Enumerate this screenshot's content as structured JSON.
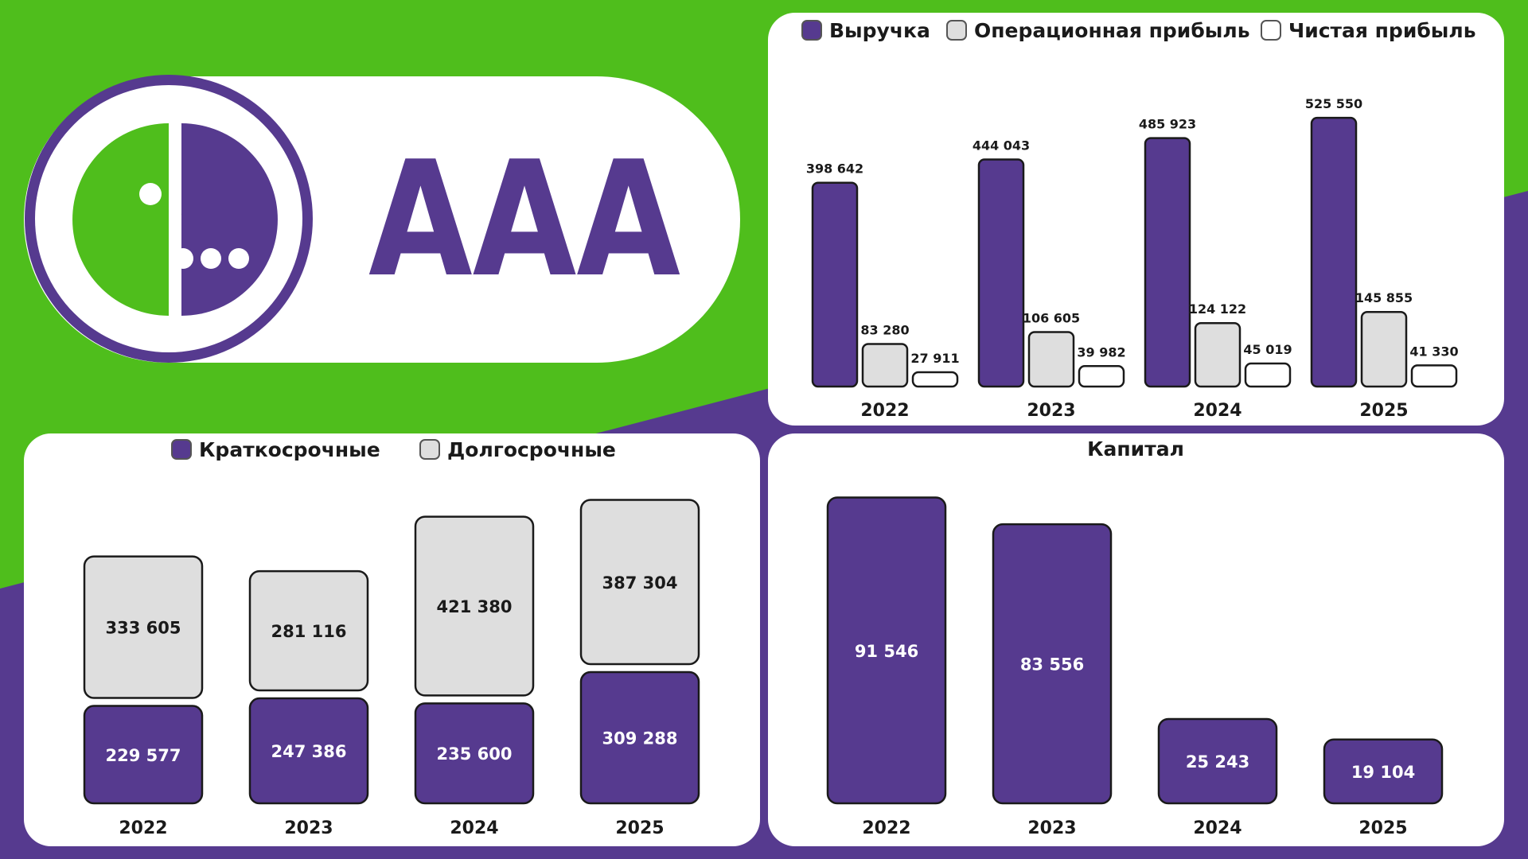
{
  "colors": {
    "green": "#4fbe1c",
    "purple": "#563a8f",
    "light_gray": "#dedede",
    "white": "#ffffff",
    "text_dark": "#1a1a1a"
  },
  "logo": {
    "ticker": "AAA",
    "icon": "megafon-logo-icon"
  },
  "chart_data": [
    {
      "type": "bar",
      "categories": [
        "2022",
        "2023",
        "2024",
        "2025"
      ],
      "series": [
        {
          "name": "Выручка",
          "values": [
            398642,
            444043,
            485923,
            525550
          ],
          "labels": [
            "398 642",
            "444 043",
            "485 923",
            "525 550"
          ],
          "color": "#563a8f"
        },
        {
          "name": "Операционная прибыль",
          "values": [
            83280,
            106605,
            124122,
            145855
          ],
          "labels": [
            "83 280",
            "106 605",
            "124 122",
            "145 855"
          ],
          "color": "#dedede"
        },
        {
          "name": "Чистая прибыль",
          "values": [
            27911,
            39982,
            45019,
            41330
          ],
          "labels": [
            "27 911",
            "39 982",
            "45 019",
            "41 330"
          ],
          "color": "#ffffff"
        }
      ],
      "ylim": [
        0,
        560000
      ],
      "legend": "top",
      "grid": false
    },
    {
      "type": "bar",
      "stacked": true,
      "categories": [
        "2022",
        "2023",
        "2024",
        "2025"
      ],
      "series": [
        {
          "name": "Краткосрочные",
          "values": [
            229577,
            247386,
            235600,
            309288
          ],
          "labels": [
            "229 577",
            "247 386",
            "235 600",
            "309 288"
          ],
          "color": "#563a8f"
        },
        {
          "name": "Долгосрочные",
          "values": [
            333605,
            281116,
            421380,
            387304
          ],
          "labels": [
            "333 605",
            "281 116",
            "421 380",
            "387 304"
          ],
          "color": "#dedede"
        }
      ],
      "ylim": [
        0,
        750000
      ],
      "legend": "top",
      "grid": false
    },
    {
      "type": "bar",
      "title": "Капитал",
      "categories": [
        "2022",
        "2023",
        "2024",
        "2025"
      ],
      "series": [
        {
          "values": [
            91546,
            83556,
            25243,
            19104
          ],
          "labels": [
            "91 546",
            "83 556",
            "25 243",
            "19 104"
          ],
          "color": "#563a8f"
        }
      ],
      "ylim": [
        0,
        100000
      ],
      "grid": false
    }
  ]
}
